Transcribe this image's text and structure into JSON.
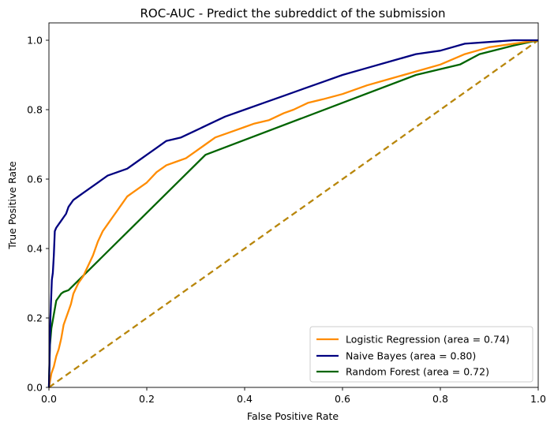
{
  "chart_data": {
    "type": "line",
    "title": "ROC-AUC - Predict the subreddict of the submission",
    "xlabel": "False Positive Rate",
    "ylabel": "True Positive Rate",
    "xlim": [
      0.0,
      1.0
    ],
    "ylim": [
      0.0,
      1.05
    ],
    "xticks": [
      "0.0",
      "0.2",
      "0.4",
      "0.6",
      "0.8",
      "1.0"
    ],
    "yticks": [
      "0.0",
      "0.2",
      "0.4",
      "0.6",
      "0.8",
      "1.0"
    ],
    "grid": false,
    "legend_position": "lower-right",
    "series": [
      {
        "name": "Logistic Regression (area = 0.74)",
        "color": "#ff8c00",
        "x": [
          0,
          0.005,
          0.01,
          0.015,
          0.02,
          0.025,
          0.03,
          0.035,
          0.04,
          0.045,
          0.05,
          0.06,
          0.07,
          0.08,
          0.09,
          0.1,
          0.11,
          0.12,
          0.13,
          0.14,
          0.15,
          0.16,
          0.17,
          0.18,
          0.19,
          0.2,
          0.22,
          0.24,
          0.26,
          0.28,
          0.3,
          0.32,
          0.34,
          0.36,
          0.38,
          0.4,
          0.42,
          0.45,
          0.48,
          0.5,
          0.53,
          0.56,
          0.6,
          0.65,
          0.7,
          0.75,
          0.8,
          0.85,
          0.9,
          0.95,
          1.0
        ],
        "y": [
          0,
          0.04,
          0.06,
          0.09,
          0.11,
          0.14,
          0.18,
          0.2,
          0.22,
          0.24,
          0.27,
          0.3,
          0.32,
          0.35,
          0.38,
          0.42,
          0.45,
          0.47,
          0.49,
          0.51,
          0.53,
          0.55,
          0.56,
          0.57,
          0.58,
          0.59,
          0.62,
          0.64,
          0.65,
          0.66,
          0.68,
          0.7,
          0.72,
          0.73,
          0.74,
          0.75,
          0.76,
          0.77,
          0.79,
          0.8,
          0.82,
          0.83,
          0.845,
          0.87,
          0.89,
          0.91,
          0.93,
          0.96,
          0.98,
          0.99,
          1.0
        ]
      },
      {
        "name": "Naive Bayes (area = 0.80)",
        "color": "#000080",
        "x": [
          0,
          0.003,
          0.006,
          0.008,
          0.01,
          0.012,
          0.015,
          0.02,
          0.025,
          0.03,
          0.035,
          0.04,
          0.05,
          0.06,
          0.07,
          0.08,
          0.09,
          0.1,
          0.12,
          0.14,
          0.16,
          0.18,
          0.2,
          0.22,
          0.24,
          0.27,
          0.3,
          0.33,
          0.36,
          0.4,
          0.44,
          0.48,
          0.52,
          0.56,
          0.6,
          0.65,
          0.7,
          0.75,
          0.8,
          0.85,
          0.9,
          0.95,
          1.0
        ],
        "y": [
          0,
          0.2,
          0.31,
          0.33,
          0.38,
          0.45,
          0.46,
          0.47,
          0.48,
          0.49,
          0.5,
          0.52,
          0.54,
          0.55,
          0.56,
          0.57,
          0.58,
          0.59,
          0.61,
          0.62,
          0.63,
          0.65,
          0.67,
          0.69,
          0.71,
          0.72,
          0.74,
          0.76,
          0.78,
          0.8,
          0.82,
          0.84,
          0.86,
          0.88,
          0.9,
          0.92,
          0.94,
          0.96,
          0.97,
          0.99,
          0.995,
          1.0,
          1.0
        ]
      },
      {
        "name": "Random Forest (area = 0.72)",
        "color": "#006400",
        "x": [
          0,
          0.002,
          0.005,
          0.01,
          0.015,
          0.02,
          0.025,
          0.03,
          0.04,
          0.32,
          0.75,
          0.84,
          0.88,
          0.95,
          1.0
        ],
        "y": [
          0,
          0.12,
          0.17,
          0.21,
          0.25,
          0.26,
          0.27,
          0.275,
          0.28,
          0.67,
          0.9,
          0.93,
          0.96,
          0.985,
          1.0
        ]
      },
      {
        "name": "",
        "color": "#b8860b",
        "dashed": true,
        "x": [
          0,
          1
        ],
        "y": [
          0,
          1
        ]
      }
    ]
  }
}
